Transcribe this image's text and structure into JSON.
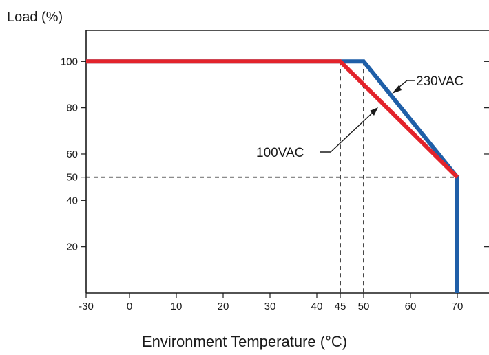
{
  "chart_data": {
    "type": "line",
    "ylabel": "Load (%)",
    "xlabel": "Environment Temperature  (°C)",
    "xlim": [
      -30,
      76
    ],
    "ylim": [
      0,
      110
    ],
    "x_ticks": [
      -30,
      0,
      10,
      20,
      30,
      40,
      45,
      50,
      60,
      70
    ],
    "y_ticks": [
      20,
      40,
      50,
      60,
      80,
      100
    ],
    "grid": false,
    "series": [
      {
        "name": "230VAC",
        "color": "#1f5fa8",
        "x": [
          -30,
          50,
          70,
          70
        ],
        "y": [
          100,
          100,
          50,
          0
        ]
      },
      {
        "name": "100VAC",
        "color": "#e3232b",
        "x": [
          -30,
          45,
          70
        ],
        "y": [
          100,
          100,
          50
        ]
      }
    ],
    "reference_lines": [
      {
        "axis": "x",
        "value": 45,
        "style": "dashed"
      },
      {
        "axis": "x",
        "value": 50,
        "style": "dashed"
      },
      {
        "axis": "y",
        "value": 50,
        "style": "dashed"
      }
    ],
    "annotations": [
      {
        "text": "230VAC",
        "series": "230VAC"
      },
      {
        "text": "100VAC",
        "series": "100VAC"
      }
    ]
  }
}
